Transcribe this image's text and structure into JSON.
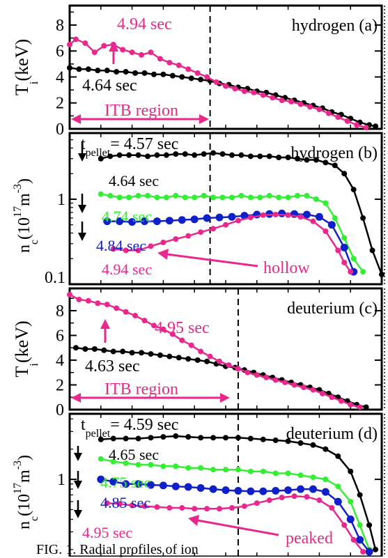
{
  "figure": {
    "caption_fragment": "FIG. 1. Radial profiles of ion"
  },
  "colors": {
    "black": "#000000",
    "magenta": "#e8288c",
    "green": "#33ee33",
    "blue": "#1020c8"
  },
  "chart_data": [
    {
      "panel": "(a)",
      "type": "line",
      "species_label": "hydrogen",
      "panel_label": "(a)",
      "ylabel_main": "T",
      "ylabel_sub": "i",
      "ylabel_unit": "(keV)",
      "yticks": [
        "0",
        "2",
        "4",
        "6",
        "8"
      ],
      "ylim": [
        0,
        9.5
      ],
      "xlim": [
        0,
        1.0
      ],
      "vline_x": 0.45,
      "region_label": "ITB region",
      "region_x": [
        0.0,
        0.44
      ],
      "series": [
        {
          "name": "4.64 sec",
          "color": "black",
          "x": [
            0.0,
            0.03,
            0.06,
            0.09,
            0.12,
            0.15,
            0.18,
            0.21,
            0.24,
            0.27,
            0.3,
            0.33,
            0.36,
            0.39,
            0.42,
            0.45,
            0.48,
            0.51,
            0.54,
            0.57,
            0.6,
            0.63,
            0.66,
            0.69,
            0.72,
            0.75,
            0.78,
            0.81,
            0.84,
            0.87,
            0.9,
            0.93,
            0.96,
            0.98
          ],
          "y": [
            4.7,
            4.6,
            4.6,
            4.5,
            4.5,
            4.4,
            4.4,
            4.3,
            4.3,
            4.2,
            4.2,
            4.1,
            4.0,
            3.9,
            3.8,
            3.7,
            3.5,
            3.4,
            3.2,
            3.1,
            2.9,
            2.8,
            2.6,
            2.4,
            2.2,
            2.0,
            1.8,
            1.6,
            1.3,
            1.1,
            0.8,
            0.5,
            0.3,
            0.2
          ]
        },
        {
          "name": "4.94 sec",
          "color": "magenta",
          "x": [
            0.0,
            0.02,
            0.05,
            0.08,
            0.11,
            0.14,
            0.17,
            0.2,
            0.23,
            0.26,
            0.29,
            0.32,
            0.35,
            0.38,
            0.41,
            0.44,
            0.47,
            0.5,
            0.53,
            0.56,
            0.59,
            0.62,
            0.65,
            0.68,
            0.71,
            0.74,
            0.77,
            0.8,
            0.83,
            0.86,
            0.89,
            0.92,
            0.95
          ],
          "y": [
            6.5,
            6.9,
            6.6,
            5.9,
            6.4,
            6.5,
            6.1,
            5.9,
            5.7,
            5.9,
            5.4,
            5.1,
            4.9,
            4.6,
            4.3,
            4.0,
            3.6,
            3.3,
            3.1,
            2.9,
            2.8,
            2.6,
            2.4,
            2.2,
            2.1,
            1.9,
            1.7,
            1.5,
            1.2,
            0.9,
            0.6,
            0.3,
            0.1
          ]
        }
      ],
      "series_labels": [
        "4.94 sec",
        "4.64 sec"
      ]
    },
    {
      "panel": "(b)",
      "type": "line",
      "log_y": true,
      "species_label": "hydrogen",
      "panel_label": "(b)",
      "pellet_label_t": "t",
      "pellet_label_sub": "pellet",
      "pellet_label_val": "= 4.57 sec",
      "ylabel_main": "n",
      "ylabel_sub": "c",
      "ylabel_unit1": "(10",
      "ylabel_exp1": "17",
      "ylabel_unit2": "m",
      "ylabel_exp2": "-3",
      "ylabel_close": ")",
      "yticks": [
        "0.1",
        "1"
      ],
      "ylim": [
        0.1,
        6.0
      ],
      "xlim": [
        0,
        1.0
      ],
      "vline_x": 0.45,
      "annotation": "hollow",
      "series": [
        {
          "name": "4.64 sec",
          "color": "black",
          "x": [
            0.1,
            0.13,
            0.16,
            0.19,
            0.22,
            0.25,
            0.28,
            0.31,
            0.34,
            0.37,
            0.4,
            0.43,
            0.46,
            0.49,
            0.52,
            0.55,
            0.58,
            0.61,
            0.64,
            0.67,
            0.7,
            0.73,
            0.76,
            0.79,
            0.82,
            0.85,
            0.88,
            0.91,
            0.94,
            0.97,
            1.0
          ],
          "y": [
            3.0,
            3.2,
            3.3,
            3.3,
            3.3,
            3.2,
            3.3,
            3.3,
            3.4,
            3.4,
            3.3,
            3.4,
            3.5,
            3.4,
            3.3,
            3.3,
            3.2,
            3.2,
            3.2,
            3.1,
            3.1,
            3.0,
            2.9,
            2.9,
            2.7,
            2.5,
            2.0,
            1.3,
            0.6,
            0.25,
            0.13
          ]
        },
        {
          "name": "4.74 sec",
          "color": "green",
          "x": [
            0.1,
            0.13,
            0.16,
            0.19,
            0.22,
            0.25,
            0.28,
            0.31,
            0.34,
            0.37,
            0.4,
            0.43,
            0.46,
            0.49,
            0.52,
            0.55,
            0.58,
            0.61,
            0.64,
            0.67,
            0.7,
            0.73,
            0.76,
            0.79,
            0.82,
            0.85,
            0.88,
            0.91,
            0.94
          ],
          "y": [
            1.15,
            1.1,
            1.05,
            1.05,
            1.1,
            1.1,
            1.05,
            1.05,
            1.1,
            1.05,
            1.05,
            1.1,
            1.05,
            1.05,
            1.05,
            1.1,
            1.05,
            1.05,
            1.1,
            1.05,
            1.05,
            1.1,
            1.1,
            1.0,
            0.9,
            0.6,
            0.35,
            0.2,
            0.14
          ]
        },
        {
          "name": "4.84 sec",
          "color": "blue",
          "x": [
            0.12,
            0.16,
            0.2,
            0.24,
            0.28,
            0.32,
            0.36,
            0.4,
            0.44,
            0.48,
            0.52,
            0.56,
            0.6,
            0.64,
            0.68,
            0.72,
            0.76,
            0.8,
            0.84,
            0.88,
            0.91
          ],
          "y": [
            0.55,
            0.55,
            0.54,
            0.55,
            0.55,
            0.56,
            0.57,
            0.58,
            0.6,
            0.61,
            0.62,
            0.64,
            0.66,
            0.67,
            0.68,
            0.67,
            0.66,
            0.62,
            0.5,
            0.27,
            0.14
          ]
        },
        {
          "name": "4.94 sec",
          "color": "magenta",
          "x": [
            0.14,
            0.18,
            0.22,
            0.26,
            0.3,
            0.34,
            0.38,
            0.42,
            0.46,
            0.5,
            0.54,
            0.58,
            0.62,
            0.66,
            0.7,
            0.74,
            0.78,
            0.82,
            0.86,
            0.88,
            0.9
          ],
          "y": [
            0.26,
            0.25,
            0.25,
            0.28,
            0.31,
            0.34,
            0.37,
            0.41,
            0.45,
            0.5,
            0.56,
            0.61,
            0.65,
            0.66,
            0.65,
            0.62,
            0.55,
            0.42,
            0.25,
            0.18,
            0.14
          ]
        }
      ],
      "series_labels": [
        "4.64 sec",
        "4.74 sec",
        "4.84 sec",
        "4.94 sec"
      ]
    },
    {
      "panel": "(c)",
      "type": "line",
      "species_label": "deuterium",
      "panel_label": "(c)",
      "ylabel_main": "T",
      "ylabel_sub": "i",
      "ylabel_unit": "(keV)",
      "yticks": [
        "0",
        "2",
        "4",
        "6",
        "8"
      ],
      "ylim": [
        0,
        9.8
      ],
      "xlim": [
        0,
        1.0
      ],
      "vline_x": 0.54,
      "region_label": "ITB region",
      "region_x": [
        0.0,
        0.53
      ],
      "series": [
        {
          "name": "4.63 sec",
          "color": "black",
          "x": [
            0.02,
            0.05,
            0.08,
            0.11,
            0.14,
            0.17,
            0.2,
            0.23,
            0.26,
            0.29,
            0.32,
            0.35,
            0.38,
            0.41,
            0.44,
            0.47,
            0.5,
            0.53,
            0.56,
            0.59,
            0.62,
            0.65,
            0.68,
            0.71,
            0.74,
            0.77,
            0.8,
            0.83,
            0.86,
            0.89,
            0.92,
            0.95
          ],
          "y": [
            5.0,
            4.9,
            4.9,
            4.8,
            4.7,
            4.7,
            4.6,
            4.6,
            4.5,
            4.4,
            4.3,
            4.2,
            4.1,
            4.0,
            3.9,
            3.7,
            3.5,
            3.4,
            3.2,
            3.0,
            2.8,
            2.6,
            2.4,
            2.2,
            2.0,
            1.8,
            1.6,
            1.3,
            1.0,
            0.7,
            0.4,
            0.2
          ]
        },
        {
          "name": "4.95 sec",
          "color": "magenta",
          "x": [
            0.0,
            0.03,
            0.06,
            0.09,
            0.12,
            0.15,
            0.18,
            0.21,
            0.24,
            0.27,
            0.3,
            0.33,
            0.36,
            0.39,
            0.42,
            0.45,
            0.48,
            0.51,
            0.54,
            0.57,
            0.6,
            0.63,
            0.66,
            0.69,
            0.72,
            0.75,
            0.78,
            0.81,
            0.84,
            0.87,
            0.9,
            0.93
          ],
          "y": [
            9.3,
            8.9,
            8.8,
            8.6,
            8.5,
            8.2,
            7.9,
            7.6,
            7.2,
            6.8,
            6.5,
            6.1,
            5.6,
            5.2,
            4.7,
            4.3,
            3.9,
            3.6,
            3.3,
            3.0,
            2.8,
            2.6,
            2.4,
            2.2,
            2.0,
            1.8,
            1.6,
            1.3,
            1.0,
            0.7,
            0.4,
            0.2
          ]
        }
      ],
      "series_labels": [
        "4.95 sec",
        "4.63 sec"
      ]
    },
    {
      "panel": "(d)",
      "type": "line",
      "log_y": true,
      "species_label": "deuterium",
      "panel_label": "(d)",
      "pellet_label_t": "t",
      "pellet_label_sub": "pellet",
      "pellet_label_val": "= 4.59 sec",
      "ylabel_main": "n",
      "ylabel_sub": "c",
      "ylabel_unit1": "(10",
      "ylabel_exp1": "17",
      "ylabel_unit2": "m",
      "ylabel_exp2": "-3",
      "ylabel_close": ")",
      "yticks": [
        "1"
      ],
      "ylim": [
        0.17,
        4.5
      ],
      "xlim": [
        0,
        1.0
      ],
      "vline_x": 0.54,
      "annotation": "peaked",
      "series": [
        {
          "name": "4.65 sec",
          "color": "black",
          "x": [
            0.1,
            0.14,
            0.18,
            0.22,
            0.26,
            0.3,
            0.34,
            0.38,
            0.42,
            0.46,
            0.5,
            0.54,
            0.58,
            0.62,
            0.66,
            0.7,
            0.74,
            0.78,
            0.82,
            0.86,
            0.9,
            0.93,
            0.96,
            0.98
          ],
          "y": [
            2.5,
            2.55,
            2.55,
            2.55,
            2.6,
            2.65,
            2.7,
            2.65,
            2.6,
            2.6,
            2.6,
            2.6,
            2.55,
            2.5,
            2.45,
            2.4,
            2.3,
            2.2,
            2.0,
            1.7,
            1.2,
            0.7,
            0.35,
            0.2
          ]
        },
        {
          "name": "4.75 sec",
          "color": "green",
          "x": [
            0.1,
            0.14,
            0.18,
            0.22,
            0.26,
            0.3,
            0.34,
            0.38,
            0.42,
            0.46,
            0.5,
            0.54,
            0.58,
            0.62,
            0.66,
            0.7,
            0.74,
            0.78,
            0.82,
            0.86,
            0.9,
            0.93,
            0.96
          ],
          "y": [
            1.6,
            1.5,
            1.45,
            1.4,
            1.4,
            1.35,
            1.35,
            1.3,
            1.3,
            1.25,
            1.25,
            1.25,
            1.2,
            1.2,
            1.15,
            1.15,
            1.1,
            1.05,
            1.0,
            0.85,
            0.6,
            0.35,
            0.2
          ]
        },
        {
          "name": "4.85 sec",
          "color": "blue",
          "x": [
            0.1,
            0.14,
            0.18,
            0.22,
            0.26,
            0.3,
            0.34,
            0.38,
            0.42,
            0.46,
            0.5,
            0.54,
            0.58,
            0.62,
            0.66,
            0.7,
            0.74,
            0.78,
            0.82,
            0.86,
            0.9,
            0.93,
            0.96
          ],
          "y": [
            1.0,
            0.95,
            0.9,
            0.9,
            0.88,
            0.87,
            0.85,
            0.84,
            0.82,
            0.8,
            0.78,
            0.77,
            0.76,
            0.76,
            0.77,
            0.78,
            0.8,
            0.8,
            0.75,
            0.6,
            0.4,
            0.25,
            0.19
          ]
        },
        {
          "name": "4.95 sec",
          "color": "magenta",
          "x": [
            0.12,
            0.16,
            0.2,
            0.24,
            0.28,
            0.32,
            0.36,
            0.4,
            0.44,
            0.48,
            0.52,
            0.56,
            0.6,
            0.64,
            0.68,
            0.72,
            0.76,
            0.8,
            0.84,
            0.88,
            0.91,
            0.94
          ],
          "y": [
            0.58,
            0.57,
            0.55,
            0.54,
            0.53,
            0.52,
            0.52,
            0.51,
            0.51,
            0.51,
            0.52,
            0.54,
            0.58,
            0.62,
            0.66,
            0.68,
            0.67,
            0.62,
            0.52,
            0.35,
            0.25,
            0.19
          ]
        }
      ],
      "series_labels": [
        "4.65 sec",
        "4.75 sec",
        "4.85 sec",
        "4.95 sec"
      ]
    }
  ]
}
